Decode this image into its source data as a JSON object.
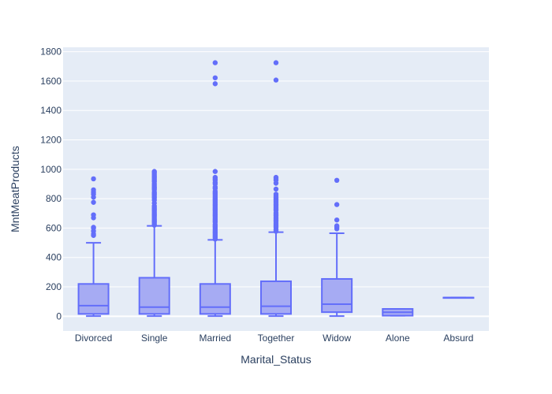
{
  "chart_data": {
    "type": "box",
    "xlabel": "Marital_Status",
    "ylabel": "MntMeatProducts",
    "ylim": [
      -100,
      1830
    ],
    "yticks": [
      0,
      200,
      400,
      600,
      800,
      1000,
      1200,
      1400,
      1600,
      1800
    ],
    "categories": [
      "Divorced",
      "Single",
      "Married",
      "Together",
      "Widow",
      "Alone",
      "Absurd"
    ],
    "boxes": [
      {
        "category": "Divorced",
        "min": 1,
        "q1": 16,
        "median": 72,
        "q3": 220,
        "max": 500,
        "outliers": [
          550,
          560,
          580,
          600,
          605,
          670,
          690,
          775,
          810,
          830,
          845,
          860,
          935
        ]
      },
      {
        "category": "Single",
        "min": 1,
        "q1": 16,
        "median": 62,
        "q3": 262,
        "max": 615,
        "outliers": [
          620,
          630,
          640,
          650,
          660,
          670,
          680,
          690,
          700,
          710,
          720,
          730,
          740,
          750,
          770,
          790,
          805,
          815,
          825,
          835,
          845,
          860,
          870,
          880,
          890,
          900,
          915,
          925,
          935,
          945,
          955,
          965,
          975,
          985
        ]
      },
      {
        "category": "Married",
        "min": 1,
        "q1": 16,
        "median": 62,
        "q3": 220,
        "max": 520,
        "outliers": [
          525,
          535,
          545,
          555,
          565,
          575,
          585,
          595,
          605,
          615,
          625,
          640,
          650,
          660,
          670,
          680,
          690,
          700,
          710,
          720,
          730,
          740,
          750,
          760,
          770,
          780,
          790,
          800,
          810,
          820,
          830,
          840,
          850,
          870,
          880,
          900,
          910,
          925,
          935,
          945,
          985,
          1582,
          1622,
          1725
        ]
      },
      {
        "category": "Together",
        "min": 1,
        "q1": 16,
        "median": 68,
        "q3": 238,
        "max": 572,
        "outliers": [
          578,
          590,
          605,
          615,
          625,
          635,
          645,
          655,
          665,
          675,
          685,
          695,
          705,
          720,
          730,
          740,
          750,
          760,
          770,
          780,
          790,
          800,
          810,
          820,
          830,
          865,
          905,
          925,
          935,
          945,
          1607,
          1725
        ]
      },
      {
        "category": "Widow",
        "min": 1,
        "q1": 28,
        "median": 82,
        "q3": 254,
        "max": 565,
        "outliers": [
          595,
          605,
          615,
          655,
          760,
          925
        ]
      },
      {
        "category": "Alone",
        "min": 4,
        "q1": 4,
        "median": 27,
        "q3": 50,
        "max": 50,
        "outliers": []
      },
      {
        "category": "Absurd",
        "min": 127,
        "q1": 127,
        "median": 127,
        "q3": 127,
        "max": 127,
        "outliers": []
      }
    ]
  },
  "colors": {
    "plot_bg": "#e5ecf6",
    "grid": "#ffffff",
    "box_line": "#636efa",
    "box_fill": "#a6abf3",
    "text": "#2a3f5f"
  }
}
